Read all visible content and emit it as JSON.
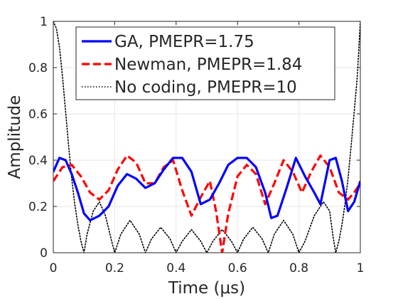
{
  "chart_data": {
    "type": "line",
    "xlabel": "Time (μs)",
    "ylabel": "Amplitude",
    "xlim": [
      0,
      1
    ],
    "ylim": [
      0,
      1
    ],
    "xticks": [
      0,
      0.2,
      0.4,
      0.6,
      0.8,
      1
    ],
    "yticks": [
      0,
      0.2,
      0.4,
      0.6,
      0.8,
      1
    ],
    "xtick_labels": [
      "0",
      "0.2",
      "0.4",
      "0.6",
      "0.8",
      "1"
    ],
    "ytick_labels": [
      "0",
      "0.2",
      "0.4",
      "0.6",
      "0.8",
      "1"
    ],
    "grid": true,
    "legend_position": "top",
    "series": [
      {
        "name": "GA, PMEPR=1.75",
        "color": "#0000ff",
        "style": "solid",
        "x": [
          0,
          0.02,
          0.04,
          0.06,
          0.08,
          0.1,
          0.12,
          0.15,
          0.18,
          0.21,
          0.24,
          0.27,
          0.3,
          0.33,
          0.36,
          0.39,
          0.42,
          0.45,
          0.48,
          0.51,
          0.54,
          0.57,
          0.6,
          0.63,
          0.66,
          0.69,
          0.71,
          0.73,
          0.76,
          0.79,
          0.82,
          0.85,
          0.87,
          0.9,
          0.92,
          0.94,
          0.96,
          0.98,
          1.0
        ],
        "y": [
          0.35,
          0.41,
          0.4,
          0.34,
          0.26,
          0.17,
          0.14,
          0.16,
          0.2,
          0.29,
          0.34,
          0.32,
          0.28,
          0.3,
          0.36,
          0.41,
          0.41,
          0.35,
          0.21,
          0.23,
          0.3,
          0.38,
          0.41,
          0.41,
          0.37,
          0.26,
          0.15,
          0.16,
          0.28,
          0.41,
          0.33,
          0.26,
          0.21,
          0.4,
          0.41,
          0.31,
          0.18,
          0.22,
          0.31
        ]
      },
      {
        "name": "Newman, PMEPR=1.84",
        "color": "#ff0000",
        "style": "dashed",
        "x": [
          0,
          0.03,
          0.06,
          0.09,
          0.12,
          0.15,
          0.18,
          0.21,
          0.24,
          0.27,
          0.3,
          0.33,
          0.36,
          0.39,
          0.42,
          0.45,
          0.48,
          0.51,
          0.53,
          0.55,
          0.57,
          0.6,
          0.63,
          0.66,
          0.69,
          0.72,
          0.75,
          0.78,
          0.81,
          0.84,
          0.87,
          0.9,
          0.93,
          0.96,
          0.98,
          1.0
        ],
        "y": [
          0.31,
          0.37,
          0.38,
          0.33,
          0.26,
          0.23,
          0.27,
          0.36,
          0.42,
          0.39,
          0.3,
          0.3,
          0.37,
          0.4,
          0.27,
          0.16,
          0.24,
          0.31,
          0.18,
          0.0,
          0.17,
          0.33,
          0.38,
          0.34,
          0.21,
          0.3,
          0.4,
          0.35,
          0.26,
          0.35,
          0.42,
          0.37,
          0.26,
          0.23,
          0.26,
          0.3
        ]
      },
      {
        "name": "No coding, PMEPR=10",
        "color": "#000000",
        "style": "dotted",
        "x": [
          0,
          0.01,
          0.02,
          0.03,
          0.04,
          0.05,
          0.06,
          0.07,
          0.08,
          0.09,
          0.1,
          0.11,
          0.13,
          0.15,
          0.17,
          0.19,
          0.2,
          0.22,
          0.25,
          0.28,
          0.3,
          0.32,
          0.35,
          0.38,
          0.4,
          0.42,
          0.45,
          0.48,
          0.5,
          0.52,
          0.55,
          0.58,
          0.6,
          0.62,
          0.65,
          0.68,
          0.7,
          0.72,
          0.75,
          0.78,
          0.8,
          0.82,
          0.85,
          0.88,
          0.9,
          0.91,
          0.92,
          0.93,
          0.94,
          0.95,
          0.96,
          0.97,
          0.98,
          0.99,
          1.0
        ],
        "y": [
          1.0,
          0.97,
          0.89,
          0.76,
          0.61,
          0.46,
          0.32,
          0.21,
          0.12,
          0.05,
          0.0,
          0.08,
          0.18,
          0.22,
          0.16,
          0.05,
          0.0,
          0.08,
          0.14,
          0.08,
          0.0,
          0.06,
          0.11,
          0.06,
          0.0,
          0.05,
          0.1,
          0.05,
          0.0,
          0.05,
          0.1,
          0.05,
          0.0,
          0.06,
          0.11,
          0.06,
          0.0,
          0.08,
          0.14,
          0.08,
          0.0,
          0.05,
          0.16,
          0.22,
          0.18,
          0.08,
          0.0,
          0.05,
          0.12,
          0.21,
          0.32,
          0.46,
          0.61,
          0.76,
          1.0
        ]
      }
    ]
  }
}
